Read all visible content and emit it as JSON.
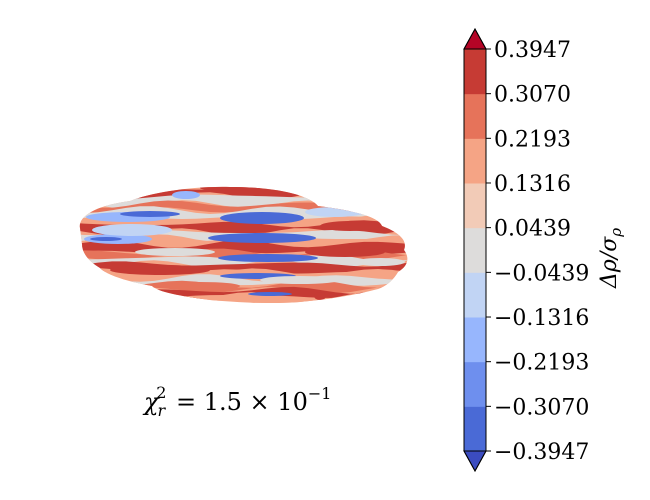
{
  "chart_data": {
    "type": "heatmap",
    "title": "",
    "annotation": {
      "chi_symbol": "χ",
      "chi_sup": "2",
      "chi_sub": "r",
      "equals": " = 1.5 × 10",
      "exponent": "−1"
    },
    "colorbar": {
      "label_main": "Δρ/σ",
      "label_sub": "ρ",
      "extend": "both",
      "levels": [
        -0.3947,
        -0.307,
        -0.2193,
        -0.1316,
        -0.0439,
        0.0439,
        0.1316,
        0.2193,
        0.307,
        0.3947
      ],
      "tick_labels": [
        "−0.3947",
        "−0.3070",
        "−0.2193",
        "−0.1316",
        "−0.0439",
        "0.0439",
        "0.1316",
        "0.2193",
        "0.3070",
        "0.3947"
      ],
      "band_colors": [
        "#4a6ad6",
        "#6e8fee",
        "#97b6fd",
        "#c1d4f4",
        "#dddcdb",
        "#f2cbb7",
        "#f5a485",
        "#e6735a",
        "#c63b34"
      ],
      "under_color": "#3b4cc0",
      "over_color": "#b40426"
    },
    "disc": {
      "description_colors": {
        "positive_strong": "#c63b34",
        "positive_mid": "#e6735a",
        "positive_weak": "#f5a485",
        "neutral": "#dddcdb",
        "negative_weak": "#c1d4f4",
        "negative_mid": "#97b6fd",
        "negative_strong": "#4a6ad6"
      }
    }
  }
}
